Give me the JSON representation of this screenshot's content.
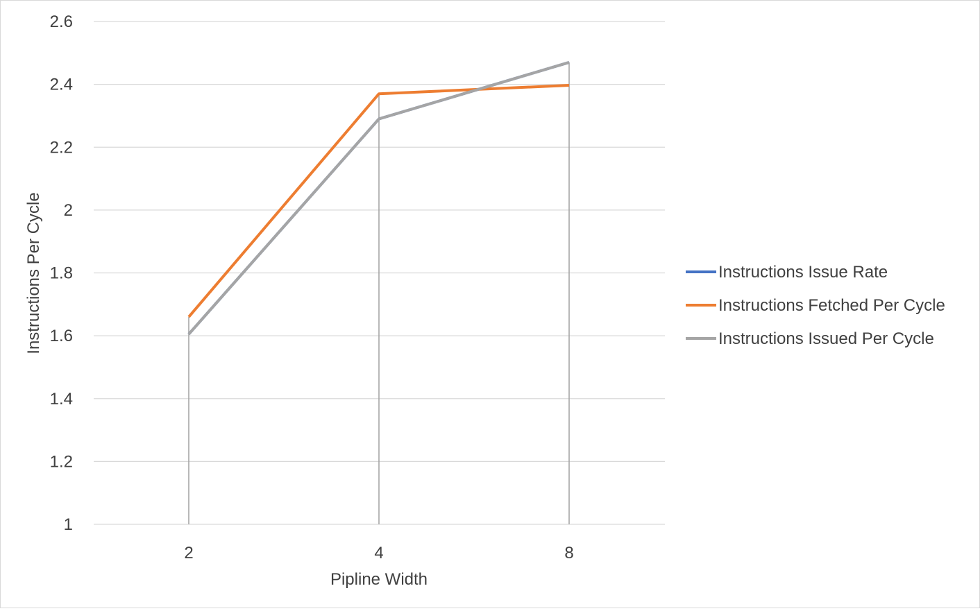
{
  "chart_data": {
    "type": "line",
    "title": "",
    "xlabel": "Pipline Width",
    "ylabel": "Instructions Per Cycle",
    "categories": [
      "2",
      "4",
      "8"
    ],
    "ylim": [
      1,
      2.6
    ],
    "yticks": [
      "1",
      "1.2",
      "1.4",
      "1.6",
      "1.8",
      "2",
      "2.2",
      "2.4",
      "2.6"
    ],
    "grid": true,
    "drop_lines": true,
    "legend_position": "right",
    "series": [
      {
        "name": "Instructions Issue Rate",
        "values": [
          1.605,
          2.29,
          2.47
        ],
        "color": "#4472c4"
      },
      {
        "name": "Instructions Fetched Per Cycle",
        "values": [
          1.66,
          2.37,
          2.397
        ],
        "color": "#ed7d31"
      },
      {
        "name": "Instructions Issued Per Cycle",
        "values": [
          1.605,
          2.29,
          2.47
        ],
        "color": "#a5a5a5"
      }
    ]
  }
}
